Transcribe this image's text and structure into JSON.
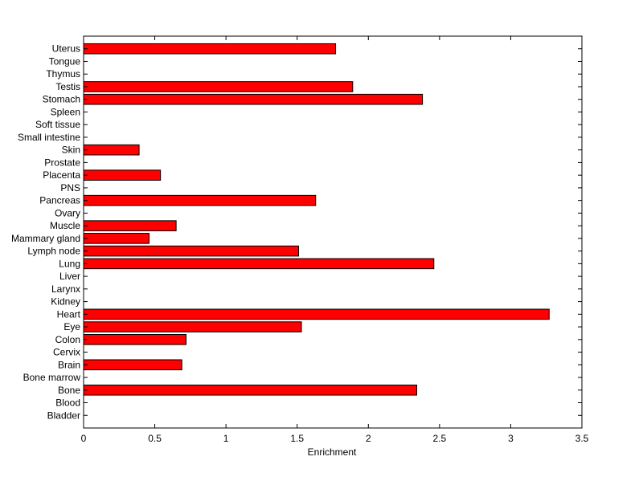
{
  "chart_data": {
    "type": "bar",
    "orientation": "horizontal",
    "title": "",
    "xlabel": "Enrichment",
    "ylabel": "",
    "xlim": [
      0,
      3.5
    ],
    "xticks": [
      0,
      0.5,
      1,
      1.5,
      2,
      2.5,
      3,
      3.5
    ],
    "xtick_labels": [
      "0",
      "0.5",
      "1",
      "1.5",
      "2",
      "2.5",
      "3",
      "3.5"
    ],
    "grid": false,
    "legend": "none",
    "bar_color": "#ff0000",
    "bar_edge_color": "#000000",
    "categories": [
      "Bladder",
      "Blood",
      "Bone",
      "Bone marrow",
      "Brain",
      "Cervix",
      "Colon",
      "Eye",
      "Heart",
      "Kidney",
      "Larynx",
      "Liver",
      "Lung",
      "Lymph node",
      "Mammary gland",
      "Muscle",
      "Ovary",
      "Pancreas",
      "PNS",
      "Placenta",
      "Prostate",
      "Skin",
      "Small intestine",
      "Soft tissue",
      "Spleen",
      "Stomach",
      "Testis",
      "Thymus",
      "Tongue",
      "Uterus"
    ],
    "values": [
      0,
      0,
      2.34,
      0,
      0.69,
      0,
      0.72,
      1.53,
      3.27,
      0,
      0,
      0,
      2.46,
      1.51,
      0.46,
      0.65,
      0,
      1.63,
      0,
      0.54,
      0,
      0.39,
      0,
      0,
      0,
      2.38,
      1.89,
      0,
      0,
      1.77
    ]
  }
}
